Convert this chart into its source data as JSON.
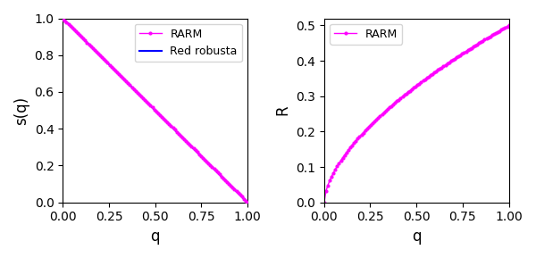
{
  "left_xlabel": "q",
  "left_ylabel": "s(q)",
  "right_xlabel": "q",
  "right_ylabel": "R",
  "left_legend": [
    "RARM",
    "Red robusta"
  ],
  "right_legend": [
    "RARM"
  ],
  "rarm_color": "#ff00ff",
  "robusta_color": "#0000ff",
  "marker": ".",
  "marker_size": 4,
  "n_points": 100,
  "xlim": [
    0.0,
    1.0
  ],
  "left_ylim": [
    0.0,
    1.0
  ],
  "right_ylim": [
    0.0,
    0.52
  ],
  "left_xticks": [
    0.0,
    0.25,
    0.5,
    0.75,
    1.0
  ],
  "right_xticks": [
    0.0,
    0.25,
    0.5,
    0.75,
    1.0
  ],
  "left_yticks": [
    0.0,
    0.2,
    0.4,
    0.6,
    0.8,
    1.0
  ],
  "right_yticks": [
    0.0,
    0.1,
    0.2,
    0.3,
    0.4,
    0.5
  ],
  "figsize": [
    6.0,
    2.89
  ],
  "dpi": 100
}
